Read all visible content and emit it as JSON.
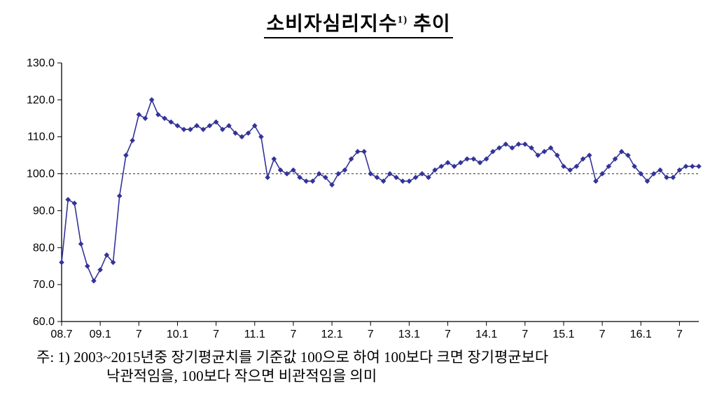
{
  "title": {
    "main": "소비자심리지수",
    "sup": "1)",
    "tail": " 추이"
  },
  "footnote": {
    "line1": "주: 1) 2003~2015년중 장기평균치를 기준값 100으로 하여 100보다 크면 장기평균보다",
    "line2": "낙관적임을, 100보다 작으면 비관적임을 의미"
  },
  "chart_data": {
    "type": "line",
    "title": "소비자심리지수1) 추이",
    "legend_position": "none",
    "grid": false,
    "marker": "diamond",
    "line_color": "#333399",
    "ylim": [
      60,
      130
    ],
    "y_ticks": [
      60,
      70,
      80,
      90,
      100,
      110,
      120,
      130
    ],
    "y_tick_labels": [
      "60.0",
      "70.0",
      "80.0",
      "90.0",
      "100.0",
      "110.0",
      "120.0",
      "130.0"
    ],
    "x_tick_labels": [
      "08.7",
      "09.1",
      "7",
      "10.1",
      "7",
      "11.1",
      "7",
      "12.1",
      "7",
      "13.1",
      "7",
      "14.1",
      "7",
      "15.1",
      "7",
      "16.1",
      "7"
    ],
    "x_tick_indices": [
      0,
      6,
      12,
      18,
      24,
      30,
      36,
      42,
      48,
      54,
      60,
      66,
      72,
      78,
      84,
      90,
      96
    ],
    "reference_line": {
      "value": 100,
      "style": "dashed",
      "color": "#333333"
    },
    "x": [
      "08.07",
      "08.08",
      "08.09",
      "08.10",
      "08.11",
      "08.12",
      "09.01",
      "09.02",
      "09.03",
      "09.04",
      "09.05",
      "09.06",
      "09.07",
      "09.08",
      "09.09",
      "09.10",
      "09.11",
      "09.12",
      "10.01",
      "10.02",
      "10.03",
      "10.04",
      "10.05",
      "10.06",
      "10.07",
      "10.08",
      "10.09",
      "10.10",
      "10.11",
      "10.12",
      "11.01",
      "11.02",
      "11.03",
      "11.04",
      "11.05",
      "11.06",
      "11.07",
      "11.08",
      "11.09",
      "11.10",
      "11.11",
      "11.12",
      "12.01",
      "12.02",
      "12.03",
      "12.04",
      "12.05",
      "12.06",
      "12.07",
      "12.08",
      "12.09",
      "12.10",
      "12.11",
      "12.12",
      "13.01",
      "13.02",
      "13.03",
      "13.04",
      "13.05",
      "13.06",
      "13.07",
      "13.08",
      "13.09",
      "13.10",
      "13.11",
      "13.12",
      "14.01",
      "14.02",
      "14.03",
      "14.04",
      "14.05",
      "14.06",
      "14.07",
      "14.08",
      "14.09",
      "14.10",
      "14.11",
      "14.12",
      "15.01",
      "15.02",
      "15.03",
      "15.04",
      "15.05",
      "15.06",
      "15.07",
      "15.08",
      "15.09",
      "15.10",
      "15.11",
      "15.12",
      "16.01",
      "16.02",
      "16.03",
      "16.04",
      "16.05",
      "16.06",
      "16.07",
      "16.08",
      "16.09",
      "16.10"
    ],
    "series": [
      {
        "name": "소비자심리지수",
        "color": "#333399",
        "values": [
          76,
          93,
          92,
          81,
          75,
          71,
          74,
          78,
          76,
          94,
          105,
          109,
          116,
          115,
          120,
          116,
          115,
          114,
          113,
          112,
          112,
          113,
          112,
          113,
          114,
          112,
          113,
          111,
          110,
          111,
          113,
          110,
          99,
          104,
          101,
          100,
          101,
          99,
          98,
          98,
          100,
          99,
          97,
          100,
          101,
          104,
          106,
          106,
          100,
          99,
          98,
          100,
          99,
          98,
          98,
          99,
          100,
          99,
          101,
          102,
          103,
          102,
          103,
          104,
          104,
          103,
          104,
          106,
          107,
          108,
          107,
          108,
          108,
          107,
          105,
          106,
          107,
          105,
          102,
          101,
          102,
          104,
          105,
          98,
          100,
          102,
          104,
          106,
          105,
          102,
          100,
          98,
          100,
          101,
          99,
          99,
          101,
          102,
          102,
          102
        ]
      }
    ]
  }
}
